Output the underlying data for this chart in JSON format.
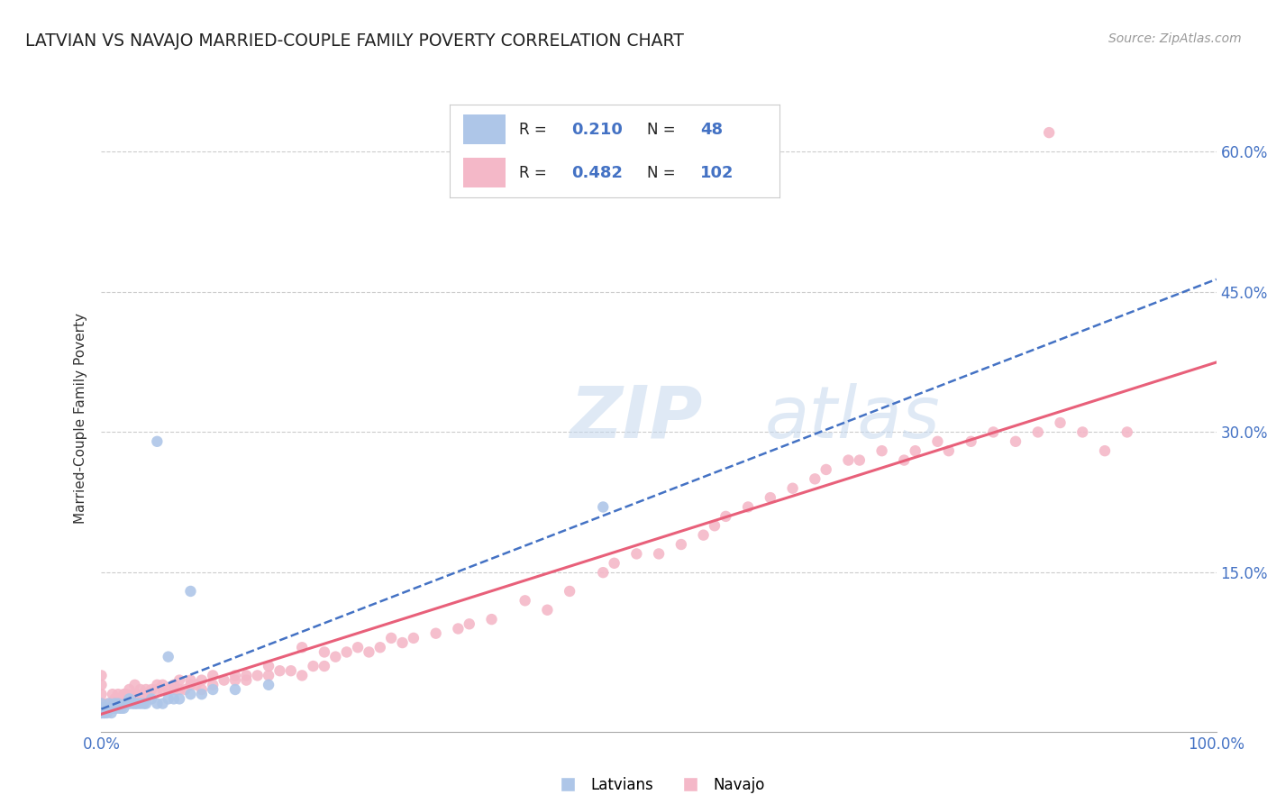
{
  "title": "LATVIAN VS NAVAJO MARRIED-COUPLE FAMILY POVERTY CORRELATION CHART",
  "source_text": "Source: ZipAtlas.com",
  "ylabel": "Married-Couple Family Poverty",
  "latvian_color": "#aec6e8",
  "navajo_color": "#f4b8c8",
  "latvian_line_color": "#4472c4",
  "navajo_line_color": "#e8607a",
  "legend_r_latvian": "0.210",
  "legend_n_latvian": "48",
  "legend_r_navajo": "0.482",
  "legend_n_navajo": "102",
  "ytick_labels": [
    "15.0%",
    "30.0%",
    "45.0%",
    "60.0%"
  ],
  "ytick_vals": [
    0.15,
    0.3,
    0.45,
    0.6
  ],
  "watermark_zip": "ZIP",
  "watermark_atlas": "atlas",
  "background_color": "#ffffff",
  "grid_color": "#cccccc",
  "latvian_points": [
    [
      0.0,
      0.0
    ],
    [
      0.0,
      0.0
    ],
    [
      0.0,
      0.005
    ],
    [
      0.0,
      0.01
    ],
    [
      0.0,
      0.005
    ],
    [
      0.002,
      0.0
    ],
    [
      0.002,
      0.005
    ],
    [
      0.003,
      0.0
    ],
    [
      0.004,
      0.005
    ],
    [
      0.005,
      0.0
    ],
    [
      0.005,
      0.005
    ],
    [
      0.006,
      0.005
    ],
    [
      0.007,
      0.005
    ],
    [
      0.007,
      0.01
    ],
    [
      0.008,
      0.005
    ],
    [
      0.009,
      0.0
    ],
    [
      0.01,
      0.005
    ],
    [
      0.011,
      0.005
    ],
    [
      0.012,
      0.01
    ],
    [
      0.013,
      0.005
    ],
    [
      0.015,
      0.01
    ],
    [
      0.016,
      0.005
    ],
    [
      0.018,
      0.005
    ],
    [
      0.02,
      0.005
    ],
    [
      0.022,
      0.01
    ],
    [
      0.025,
      0.01
    ],
    [
      0.025,
      0.015
    ],
    [
      0.028,
      0.01
    ],
    [
      0.03,
      0.01
    ],
    [
      0.032,
      0.01
    ],
    [
      0.035,
      0.01
    ],
    [
      0.038,
      0.01
    ],
    [
      0.04,
      0.01
    ],
    [
      0.045,
      0.015
    ],
    [
      0.05,
      0.01
    ],
    [
      0.055,
      0.01
    ],
    [
      0.06,
      0.015
    ],
    [
      0.065,
      0.015
    ],
    [
      0.07,
      0.015
    ],
    [
      0.08,
      0.02
    ],
    [
      0.09,
      0.02
    ],
    [
      0.1,
      0.025
    ],
    [
      0.12,
      0.025
    ],
    [
      0.15,
      0.03
    ],
    [
      0.05,
      0.29
    ],
    [
      0.08,
      0.13
    ],
    [
      0.45,
      0.22
    ],
    [
      0.06,
      0.06
    ]
  ],
  "navajo_points": [
    [
      0.0,
      0.02
    ],
    [
      0.0,
      0.03
    ],
    [
      0.0,
      0.01
    ],
    [
      0.0,
      0.005
    ],
    [
      0.0,
      0.04
    ],
    [
      0.005,
      0.01
    ],
    [
      0.007,
      0.005
    ],
    [
      0.01,
      0.01
    ],
    [
      0.01,
      0.02
    ],
    [
      0.012,
      0.015
    ],
    [
      0.015,
      0.02
    ],
    [
      0.018,
      0.01
    ],
    [
      0.02,
      0.02
    ],
    [
      0.022,
      0.02
    ],
    [
      0.025,
      0.015
    ],
    [
      0.025,
      0.025
    ],
    [
      0.028,
      0.02
    ],
    [
      0.03,
      0.02
    ],
    [
      0.03,
      0.03
    ],
    [
      0.032,
      0.02
    ],
    [
      0.035,
      0.025
    ],
    [
      0.038,
      0.02
    ],
    [
      0.04,
      0.02
    ],
    [
      0.04,
      0.025
    ],
    [
      0.042,
      0.02
    ],
    [
      0.045,
      0.025
    ],
    [
      0.05,
      0.025
    ],
    [
      0.05,
      0.03
    ],
    [
      0.055,
      0.025
    ],
    [
      0.055,
      0.03
    ],
    [
      0.06,
      0.025
    ],
    [
      0.065,
      0.025
    ],
    [
      0.065,
      0.03
    ],
    [
      0.07,
      0.025
    ],
    [
      0.07,
      0.035
    ],
    [
      0.075,
      0.025
    ],
    [
      0.08,
      0.03
    ],
    [
      0.08,
      0.035
    ],
    [
      0.085,
      0.03
    ],
    [
      0.09,
      0.025
    ],
    [
      0.09,
      0.035
    ],
    [
      0.1,
      0.03
    ],
    [
      0.1,
      0.04
    ],
    [
      0.11,
      0.035
    ],
    [
      0.12,
      0.035
    ],
    [
      0.12,
      0.04
    ],
    [
      0.13,
      0.04
    ],
    [
      0.13,
      0.035
    ],
    [
      0.14,
      0.04
    ],
    [
      0.15,
      0.04
    ],
    [
      0.15,
      0.05
    ],
    [
      0.16,
      0.045
    ],
    [
      0.17,
      0.045
    ],
    [
      0.18,
      0.04
    ],
    [
      0.18,
      0.07
    ],
    [
      0.19,
      0.05
    ],
    [
      0.2,
      0.05
    ],
    [
      0.2,
      0.065
    ],
    [
      0.21,
      0.06
    ],
    [
      0.22,
      0.065
    ],
    [
      0.23,
      0.07
    ],
    [
      0.24,
      0.065
    ],
    [
      0.25,
      0.07
    ],
    [
      0.26,
      0.08
    ],
    [
      0.27,
      0.075
    ],
    [
      0.28,
      0.08
    ],
    [
      0.3,
      0.085
    ],
    [
      0.32,
      0.09
    ],
    [
      0.33,
      0.095
    ],
    [
      0.35,
      0.1
    ],
    [
      0.38,
      0.12
    ],
    [
      0.4,
      0.11
    ],
    [
      0.42,
      0.13
    ],
    [
      0.45,
      0.15
    ],
    [
      0.46,
      0.16
    ],
    [
      0.48,
      0.17
    ],
    [
      0.5,
      0.17
    ],
    [
      0.52,
      0.18
    ],
    [
      0.54,
      0.19
    ],
    [
      0.55,
      0.2
    ],
    [
      0.56,
      0.21
    ],
    [
      0.58,
      0.22
    ],
    [
      0.6,
      0.23
    ],
    [
      0.62,
      0.24
    ],
    [
      0.64,
      0.25
    ],
    [
      0.65,
      0.26
    ],
    [
      0.67,
      0.27
    ],
    [
      0.68,
      0.27
    ],
    [
      0.7,
      0.28
    ],
    [
      0.72,
      0.27
    ],
    [
      0.73,
      0.28
    ],
    [
      0.75,
      0.29
    ],
    [
      0.76,
      0.28
    ],
    [
      0.78,
      0.29
    ],
    [
      0.8,
      0.3
    ],
    [
      0.82,
      0.29
    ],
    [
      0.84,
      0.3
    ],
    [
      0.85,
      0.62
    ],
    [
      0.86,
      0.31
    ],
    [
      0.88,
      0.3
    ],
    [
      0.9,
      0.28
    ],
    [
      0.92,
      0.3
    ]
  ]
}
